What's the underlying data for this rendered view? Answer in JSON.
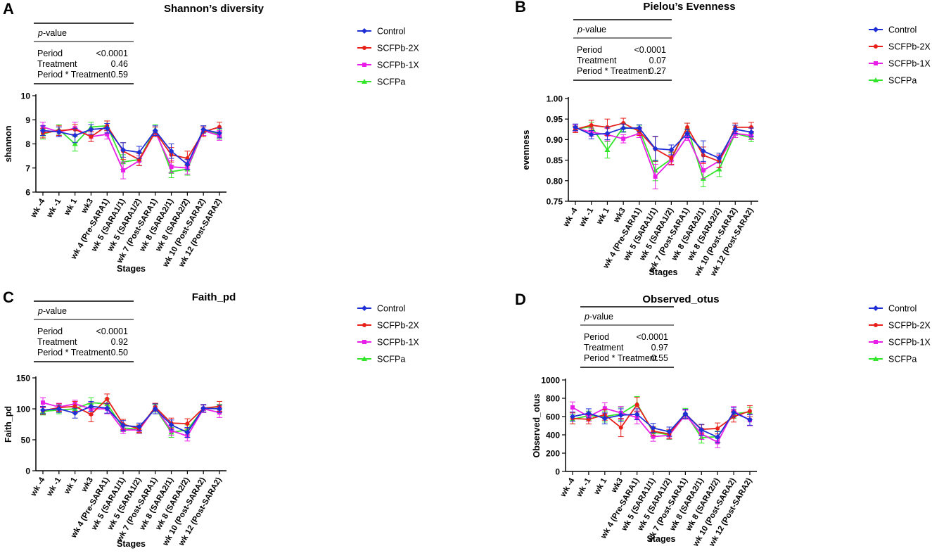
{
  "legend": {
    "labels": [
      "Control",
      "SCFPb-2X",
      "SCFPb-1X",
      "SCFPa"
    ],
    "colors": [
      "#1f2fd6",
      "#e8201a",
      "#e81ee8",
      "#33e62a"
    ],
    "markers": [
      "diamond",
      "circle",
      "square",
      "triangle"
    ]
  },
  "stats_table": {
    "header": "p-value",
    "rows": [
      "Period",
      "Treatment",
      "Period * Treatment"
    ]
  },
  "chart_data": [
    {
      "letter": "A",
      "type": "line",
      "title": "Shannon’s diversity",
      "xlabel": "Stages",
      "ylabel": "shannon",
      "ylim": [
        6,
        10
      ],
      "yticks": [
        "6",
        "7",
        "8",
        "9",
        "10"
      ],
      "pvalues": [
        "<0.0001",
        "0.46",
        "0.59"
      ],
      "categories": [
        "wk -4",
        "wk -1",
        "wk 1",
        "wk3",
        "wk 4 (Pre-SARA1)",
        "wk 5 (SARA1/1)",
        "wk 5 (SARA1/2)",
        "wk 7 (Post-SARA1)",
        "wk 8 (SARA2/1)",
        "wk 8 (SARA2/2)",
        "wk 10 (Post-SARA2)",
        "wk 12 (Post-SARA2)"
      ],
      "series": [
        {
          "name": "Control",
          "values": [
            8.55,
            8.5,
            8.35,
            8.6,
            8.65,
            7.75,
            7.65,
            8.55,
            7.7,
            7.15,
            8.6,
            8.45
          ],
          "err": [
            0.2,
            0.2,
            0.3,
            0.2,
            0.2,
            0.3,
            0.25,
            0.2,
            0.3,
            0.2,
            0.15,
            0.2
          ]
        },
        {
          "name": "SCFPb-2X",
          "values": [
            8.45,
            8.55,
            8.6,
            8.3,
            8.75,
            7.7,
            7.35,
            8.5,
            7.55,
            7.4,
            8.5,
            8.7
          ],
          "err": [
            0.2,
            0.2,
            0.2,
            0.2,
            0.2,
            0.35,
            0.25,
            0.2,
            0.3,
            0.3,
            0.2,
            0.2
          ]
        },
        {
          "name": "SCFPb-1X",
          "values": [
            8.7,
            8.5,
            8.65,
            8.3,
            8.4,
            6.9,
            7.3,
            8.5,
            7.05,
            7.0,
            8.55,
            8.35
          ],
          "err": [
            0.2,
            0.2,
            0.25,
            0.2,
            0.2,
            0.35,
            0.2,
            0.2,
            0.25,
            0.25,
            0.2,
            0.2
          ]
        },
        {
          "name": "SCFPa",
          "values": [
            8.4,
            8.6,
            8.0,
            8.7,
            8.75,
            7.25,
            7.35,
            8.6,
            6.85,
            6.95,
            8.55,
            8.4
          ],
          "err": [
            0.2,
            0.2,
            0.3,
            0.2,
            0.2,
            0.3,
            0.25,
            0.2,
            0.25,
            0.25,
            0.2,
            0.2
          ]
        }
      ]
    },
    {
      "letter": "B",
      "type": "line",
      "title": "Pielou’s Evenness",
      "xlabel": "Stages",
      "ylabel": "evenness",
      "ylim": [
        0.75,
        1.0
      ],
      "yticks": [
        "0.75",
        "0.80",
        "0.85",
        "0.90",
        "0.95",
        "1.00"
      ],
      "pvalues": [
        "<0.0001",
        "0.07",
        "0.27"
      ],
      "categories": [
        "wk -4",
        "wk -1",
        "wk 1",
        "wk3",
        "wk 4 (Pre-SARA1)",
        "wk 5 (SARA1/1)",
        "wk 5 (SARA1/2)",
        "wk 7 (Post-SARA1)",
        "wk 8 (SARA2/1)",
        "wk 8 (SARA2/2)",
        "wk 10 (Post-SARA2)",
        "wk 12 (Post-SARA2)"
      ],
      "series": [
        {
          "name": "Control",
          "values": [
            0.93,
            0.912,
            0.915,
            0.928,
            0.928,
            0.878,
            0.875,
            0.915,
            0.872,
            0.855,
            0.925,
            0.918
          ],
          "err": [
            0.008,
            0.01,
            0.015,
            0.01,
            0.008,
            0.03,
            0.012,
            0.01,
            0.025,
            0.012,
            0.01,
            0.01
          ]
        },
        {
          "name": "SCFPb-2X",
          "values": [
            0.925,
            0.935,
            0.93,
            0.94,
            0.92,
            0.877,
            0.855,
            0.93,
            0.862,
            0.847,
            0.93,
            0.93
          ],
          "err": [
            0.008,
            0.012,
            0.02,
            0.012,
            0.01,
            0.03,
            0.015,
            0.01,
            0.02,
            0.015,
            0.01,
            0.012
          ]
        },
        {
          "name": "SCFPb-1X",
          "values": [
            0.928,
            0.918,
            0.912,
            0.902,
            0.915,
            0.81,
            0.85,
            0.908,
            0.825,
            0.848,
            0.915,
            0.91
          ],
          "err": [
            0.008,
            0.01,
            0.015,
            0.01,
            0.01,
            0.03,
            0.012,
            0.01,
            0.02,
            0.015,
            0.01,
            0.01
          ]
        },
        {
          "name": "SCFPa",
          "values": [
            0.925,
            0.932,
            0.875,
            0.93,
            0.925,
            0.825,
            0.853,
            0.93,
            0.805,
            0.828,
            0.915,
            0.905
          ],
          "err": [
            0.008,
            0.01,
            0.02,
            0.01,
            0.01,
            0.025,
            0.015,
            0.01,
            0.02,
            0.018,
            0.01,
            0.01
          ]
        }
      ]
    },
    {
      "letter": "C",
      "type": "line",
      "title": "Faith_pd",
      "xlabel": "Stages",
      "ylabel": "Faith_pd",
      "ylim": [
        0,
        150
      ],
      "yticks": [
        "0",
        "50",
        "100",
        "150"
      ],
      "pvalues": [
        "<0.0001",
        "0.92",
        "0.50"
      ],
      "categories": [
        "wk -4",
        "wk -1",
        "wk 1",
        "wk3",
        "wk 4 (Pre-SARA1)",
        "wk 5 (SARA1/1)",
        "wk 5 (SARA1/2)",
        "wk 7 (Post-SARA1)",
        "wk 8 (SARA2/1)",
        "wk 8 (SARA2/2)",
        "wk 10 (Post-SARA2)",
        "wk 12 (Post-SARA2)"
      ],
      "series": [
        {
          "name": "Control",
          "values": [
            98,
            100,
            93,
            104,
            101,
            73,
            71,
            100,
            74,
            62,
            101,
            100
          ],
          "err": [
            6,
            6,
            8,
            8,
            8,
            8,
            6,
            8,
            8,
            8,
            6,
            6
          ]
        },
        {
          "name": "SCFPb-2X",
          "values": [
            97,
            102,
            104,
            91,
            116,
            75,
            68,
            103,
            77,
            76,
            101,
            104
          ],
          "err": [
            6,
            6,
            8,
            12,
            8,
            8,
            6,
            6,
            8,
            8,
            6,
            8
          ]
        },
        {
          "name": "SCFPb-1X",
          "values": [
            110,
            103,
            108,
            100,
            100,
            66,
            66,
            102,
            65,
            56,
            100,
            94
          ],
          "err": [
            8,
            6,
            6,
            10,
            8,
            6,
            6,
            6,
            8,
            8,
            6,
            8
          ]
        },
        {
          "name": "SCFPa",
          "values": [
            96,
            98,
            100,
            110,
            108,
            69,
            67,
            101,
            62,
            66,
            100,
            101
          ],
          "err": [
            6,
            6,
            6,
            8,
            8,
            6,
            6,
            6,
            8,
            8,
            6,
            6
          ]
        }
      ]
    },
    {
      "letter": "D",
      "type": "line",
      "title": "Observed_otus",
      "xlabel": "Stages",
      "ylabel": "Observed_otus",
      "ylim": [
        0,
        1000
      ],
      "yticks": [
        "0",
        "200",
        "400",
        "600",
        "800",
        "1000"
      ],
      "pvalues": [
        "<0.0001",
        "0.97",
        "0.55"
      ],
      "categories": [
        "wk -4",
        "wk -1",
        "wk 1",
        "wk3",
        "wk 4 (Pre-SARA1)",
        "wk 5 (SARA1/1)",
        "wk 5 (SARA1/2)",
        "wk 7 (Post-SARA1)",
        "wk 8 (SARA2/1)",
        "wk 8 (SARA2/2)",
        "wk 10 (Post-SARA2)",
        "wk 12 (Post-SARA2)"
      ],
      "series": [
        {
          "name": "Control",
          "values": [
            600,
            635,
            580,
            615,
            625,
            475,
            435,
            630,
            455,
            375,
            645,
            565
          ],
          "err": [
            50,
            50,
            60,
            70,
            60,
            50,
            50,
            50,
            60,
            60,
            50,
            60
          ]
        },
        {
          "name": "SCFPb-2X",
          "values": [
            580,
            570,
            620,
            480,
            730,
            440,
            410,
            630,
            460,
            470,
            600,
            660
          ],
          "err": [
            60,
            50,
            60,
            100,
            80,
            50,
            50,
            50,
            50,
            60,
            60,
            60
          ]
        },
        {
          "name": "SCFPb-1X",
          "values": [
            700,
            600,
            690,
            640,
            590,
            380,
            395,
            620,
            410,
            320,
            660,
            560
          ],
          "err": [
            60,
            50,
            60,
            70,
            70,
            50,
            40,
            50,
            60,
            60,
            50,
            60
          ]
        },
        {
          "name": "SCFPa",
          "values": [
            570,
            610,
            600,
            630,
            740,
            430,
            400,
            640,
            370,
            380,
            630,
            650
          ],
          "err": [
            50,
            50,
            60,
            70,
            80,
            50,
            50,
            50,
            60,
            60,
            50,
            50
          ]
        }
      ]
    }
  ]
}
